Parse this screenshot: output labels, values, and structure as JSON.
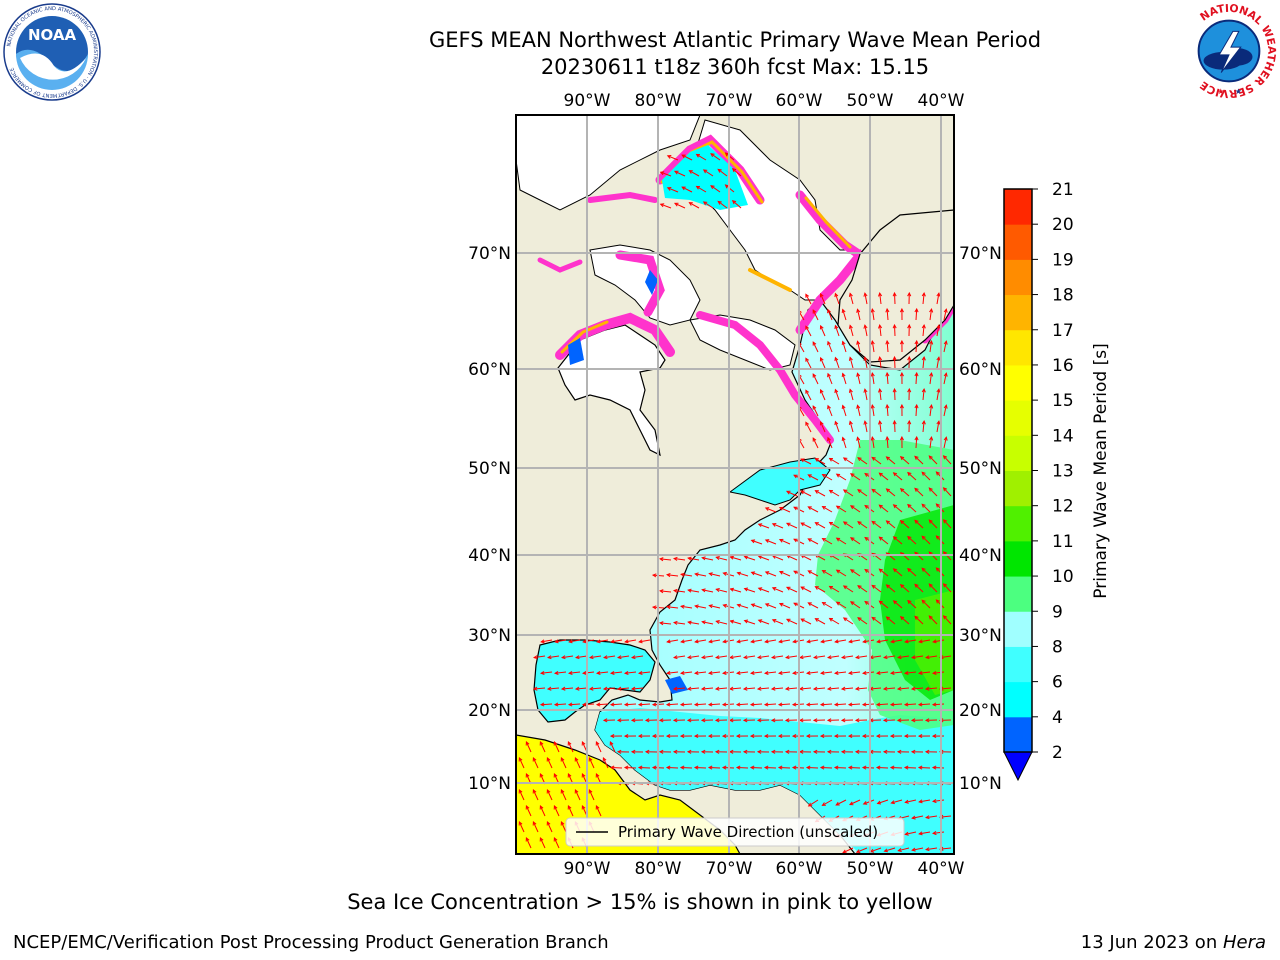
{
  "header": {
    "title_line1": "GEFS MEAN Northwest Atlantic Primary Wave Mean Period",
    "title_line2": "20230611 t18z 360h fcst   Max: 15.15"
  },
  "logos": {
    "noaa_text": "NOAA",
    "noaa_ring_text": "NATIONAL OCEANIC AND ATMOSPHERIC ADMINISTRATION · U.S. DEPARTMENT OF COMMERCE",
    "nws_ring_text": "NATIONAL WEATHER SERVICE"
  },
  "map": {
    "lon_labels": [
      "90°W",
      "80°W",
      "70°W",
      "60°W",
      "50°W",
      "40°W"
    ],
    "lat_labels": [
      "70°N",
      "60°N",
      "50°N",
      "40°N",
      "30°N",
      "20°N",
      "10°N"
    ],
    "legend_label": "Primary Wave Direction (unscaled)",
    "colors": {
      "land": "#efedda",
      "ice_free_land": "#ffffff",
      "grid": "#b4b4b4",
      "arrow": "#ff0000"
    }
  },
  "colorbar": {
    "label": "Primary Wave Mean Period [s]",
    "ticks": [
      "2",
      "4",
      "6",
      "8",
      "9",
      "10",
      "11",
      "12",
      "13",
      "14",
      "15",
      "16",
      "17",
      "18",
      "19",
      "20",
      "21"
    ],
    "colors": [
      "#0064ff",
      "#00ffff",
      "#40ffff",
      "#a0ffff",
      "#4cff80",
      "#00e600",
      "#50f000",
      "#a0f000",
      "#c8ff00",
      "#e6ff00",
      "#ffff00",
      "#ffe600",
      "#ffb400",
      "#ff8c00",
      "#ff5a00",
      "#ff2800"
    ],
    "under_color": "#0000ff",
    "top_color": "#ff0000"
  },
  "caption": "Sea Ice Concentration > 15% is shown in pink to yellow",
  "footer": {
    "left": "NCEP/EMC/Verification Post Processing Product Generation Branch",
    "right_date": "13 Jun 2023 on ",
    "right_host": "Hera"
  }
}
